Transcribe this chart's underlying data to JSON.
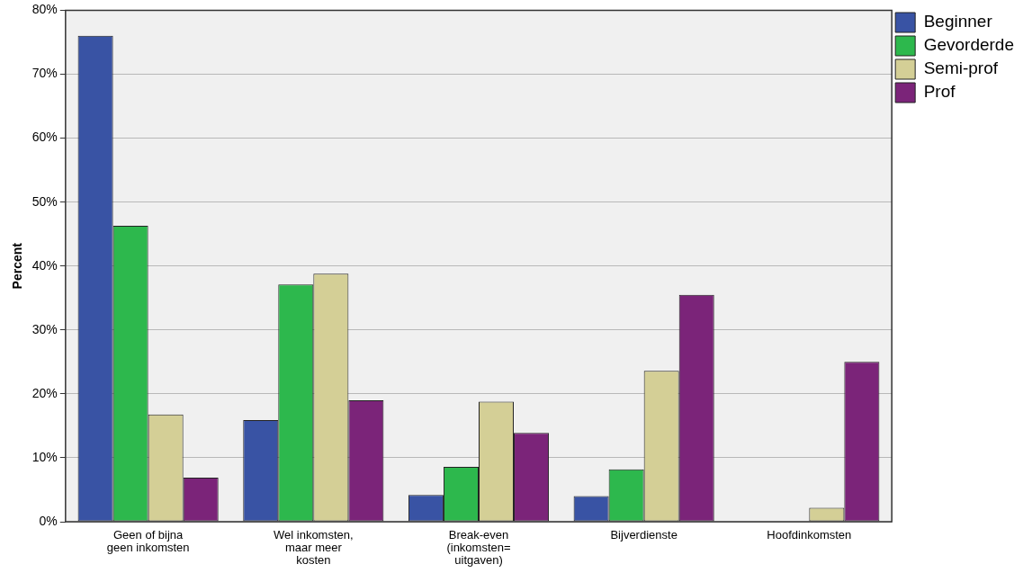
{
  "chart_data": {
    "type": "bar",
    "ylabel": "Percent",
    "categories": [
      "Geen of bijna geen inkomsten",
      "Wel inkomsten, maar meer kosten",
      "Break-even (inkomsten= uitgaven)",
      "Bijverdienste",
      "Hoofdinkomsten"
    ],
    "series": [
      {
        "name": "Beginner",
        "color": "#3953a4",
        "values": [
          76.0,
          15.9,
          4.2,
          4.0,
          0
        ]
      },
      {
        "name": "Gevorderde",
        "color": "#2db84d",
        "values": [
          46.3,
          37.1,
          8.6,
          8.2,
          0
        ]
      },
      {
        "name": "Semi-prof",
        "color": "#d4cf96",
        "values": [
          16.8,
          38.8,
          18.8,
          23.6,
          2.2
        ]
      },
      {
        "name": "Prof",
        "color": "#7b2479",
        "values": [
          6.9,
          19.0,
          13.9,
          35.5,
          25.0
        ]
      }
    ],
    "ylim": [
      0,
      80
    ],
    "yticks": [
      {
        "value": 0,
        "label": "0%"
      },
      {
        "value": 10,
        "label": "10%"
      },
      {
        "value": 20,
        "label": "20%"
      },
      {
        "value": 30,
        "label": "30%"
      },
      {
        "value": 40,
        "label": "40%"
      },
      {
        "value": 50,
        "label": "50%"
      },
      {
        "value": 60,
        "label": "60%"
      },
      {
        "value": 70,
        "label": "70%"
      },
      {
        "value": 80,
        "label": "80%"
      }
    ],
    "grid": "y",
    "legend": "top right"
  }
}
